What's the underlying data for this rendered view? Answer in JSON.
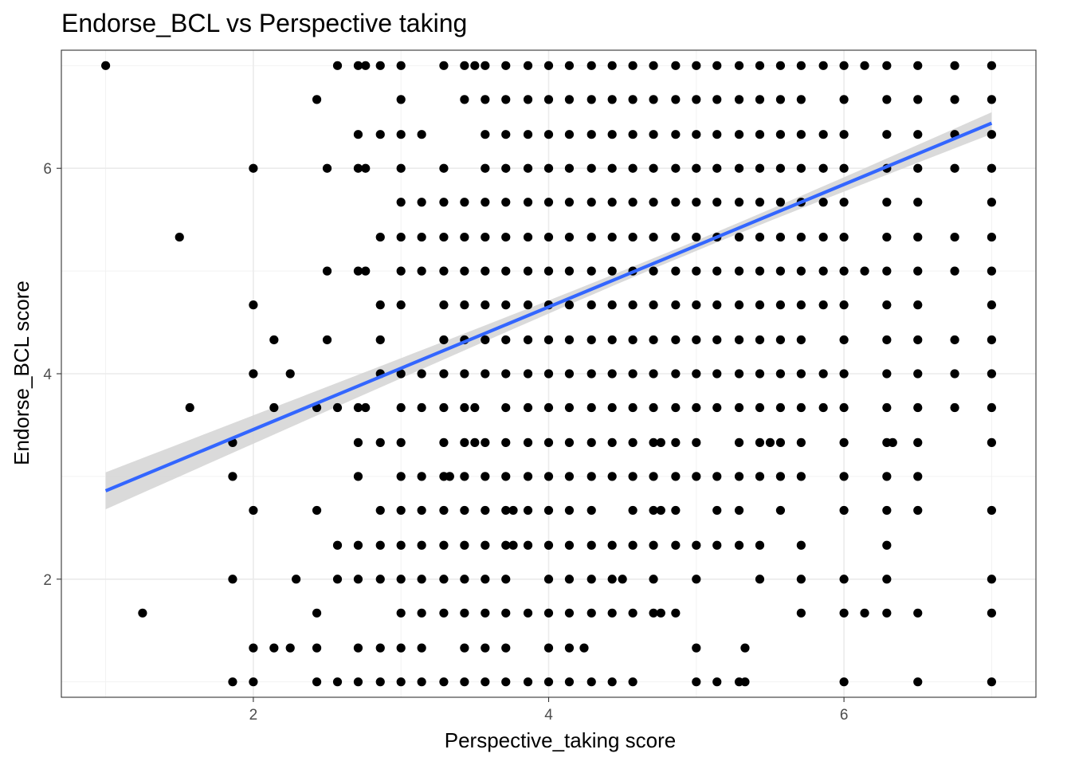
{
  "chart_data": {
    "type": "scatter",
    "title": "Endorse_BCL vs Perspective taking",
    "xlabel": "Perspective_taking score",
    "ylabel": "Endorse_BCL score",
    "xlim": [
      0.7,
      7.3
    ],
    "ylim": [
      0.85,
      7.15
    ],
    "x_ticks": [
      2,
      4,
      6
    ],
    "y_ticks": [
      2,
      4,
      6
    ],
    "x_tick_labels": [
      "2",
      "4",
      "6"
    ],
    "y_tick_labels": [
      "2",
      "4",
      "6"
    ],
    "grid": true,
    "legend": "none",
    "point_color": "#000000",
    "fit_line": {
      "method": "linear regression",
      "x": [
        1.0,
        7.0
      ],
      "y": [
        2.86,
        6.44
      ],
      "ci_lower": [
        2.68,
        6.3
      ],
      "ci_upper": [
        3.04,
        6.58
      ],
      "color": "#3366ff",
      "band_color": "#d3d3d3"
    },
    "points": [
      {
        "y": 7,
        "x": [
          1.0,
          2.57,
          2.71,
          2.76,
          2.86,
          3.0,
          3.29,
          3.43,
          3.5,
          3.57,
          3.71,
          3.86,
          4.0,
          4.14,
          4.29,
          4.43,
          4.57,
          4.71,
          4.86,
          5.0,
          5.14,
          5.29,
          5.43,
          5.57,
          5.71,
          5.86,
          6.0,
          6.14,
          6.29,
          6.5,
          6.75,
          7.0
        ]
      },
      {
        "y": 6.67,
        "x": [
          2.43,
          3.0,
          3.43,
          3.57,
          3.71,
          3.86,
          4.0,
          4.14,
          4.29,
          4.43,
          4.57,
          4.71,
          4.86,
          5.0,
          5.14,
          5.29,
          5.43,
          5.57,
          5.71,
          6.0,
          6.29,
          6.5,
          6.75,
          7.0
        ]
      },
      {
        "y": 6.33,
        "x": [
          2.71,
          2.86,
          3.0,
          3.14,
          3.57,
          3.71,
          3.86,
          4.0,
          4.14,
          4.29,
          4.43,
          4.57,
          4.71,
          4.86,
          5.0,
          5.14,
          5.29,
          5.43,
          5.57,
          5.71,
          5.86,
          6.0,
          6.29,
          6.5,
          6.75,
          7.0
        ]
      },
      {
        "y": 6,
        "x": [
          2.0,
          2.5,
          2.71,
          2.76,
          3.0,
          3.29,
          3.57,
          3.71,
          3.86,
          4.0,
          4.14,
          4.29,
          4.43,
          4.57,
          4.71,
          4.86,
          5.0,
          5.14,
          5.29,
          5.43,
          5.57,
          5.71,
          5.86,
          6.0,
          6.29,
          6.5,
          6.75,
          7.0
        ]
      },
      {
        "y": 5.67,
        "x": [
          3.0,
          3.14,
          3.29,
          3.43,
          3.57,
          3.71,
          3.86,
          4.0,
          4.14,
          4.29,
          4.43,
          4.57,
          4.71,
          4.86,
          5.0,
          5.14,
          5.29,
          5.43,
          5.57,
          5.71,
          5.86,
          6.0,
          6.29,
          6.5,
          7.0
        ]
      },
      {
        "y": 5.33,
        "x": [
          1.5,
          2.86,
          3.0,
          3.14,
          3.29,
          3.43,
          3.57,
          3.71,
          3.86,
          4.0,
          4.14,
          4.29,
          4.43,
          4.57,
          4.71,
          4.86,
          5.0,
          5.14,
          5.29,
          5.43,
          5.57,
          5.71,
          5.86,
          6.0,
          6.29,
          6.5,
          6.75,
          7.0
        ]
      },
      {
        "y": 5,
        "x": [
          2.5,
          2.71,
          2.76,
          3.0,
          3.14,
          3.29,
          3.43,
          3.57,
          3.71,
          3.86,
          4.0,
          4.14,
          4.29,
          4.43,
          4.57,
          4.71,
          4.86,
          5.0,
          5.14,
          5.29,
          5.43,
          5.57,
          5.71,
          5.86,
          6.0,
          6.14,
          6.29,
          6.5,
          6.75,
          7.0
        ]
      },
      {
        "y": 4.67,
        "x": [
          2.0,
          2.86,
          3.0,
          3.29,
          3.43,
          3.57,
          3.71,
          3.86,
          4.0,
          4.14,
          4.29,
          4.43,
          4.57,
          4.71,
          4.86,
          5.0,
          5.14,
          5.29,
          5.43,
          5.57,
          5.71,
          5.86,
          6.0,
          6.29,
          6.5,
          7.0
        ]
      },
      {
        "y": 4.33,
        "x": [
          2.14,
          2.5,
          2.86,
          3.29,
          3.43,
          3.57,
          3.71,
          3.86,
          4.0,
          4.14,
          4.29,
          4.43,
          4.57,
          4.71,
          4.86,
          5.0,
          5.14,
          5.29,
          5.43,
          5.57,
          5.71,
          6.0,
          6.29,
          6.5,
          6.75,
          7.0
        ]
      },
      {
        "y": 4,
        "x": [
          2.0,
          2.25,
          2.86,
          3.0,
          3.14,
          3.29,
          3.43,
          3.57,
          3.71,
          3.86,
          4.0,
          4.14,
          4.29,
          4.43,
          4.57,
          4.71,
          4.86,
          5.0,
          5.14,
          5.29,
          5.43,
          5.57,
          5.71,
          5.86,
          6.0,
          6.29,
          6.5,
          6.75,
          7.0
        ]
      },
      {
        "y": 3.67,
        "x": [
          1.57,
          2.14,
          2.43,
          2.57,
          2.71,
          2.76,
          3.0,
          3.14,
          3.29,
          3.43,
          3.5,
          3.71,
          3.86,
          4.0,
          4.14,
          4.29,
          4.43,
          4.57,
          4.71,
          4.86,
          5.0,
          5.14,
          5.29,
          5.43,
          5.57,
          5.71,
          5.86,
          6.0,
          6.29,
          6.5,
          6.75,
          7.0
        ]
      },
      {
        "y": 3.33,
        "x": [
          1.86,
          2.71,
          2.86,
          3.0,
          3.29,
          3.43,
          3.5,
          3.57,
          3.71,
          3.86,
          4.0,
          4.14,
          4.29,
          4.43,
          4.57,
          4.71,
          4.76,
          4.86,
          5.0,
          5.29,
          5.43,
          5.5,
          5.57,
          5.71,
          6.0,
          6.29,
          6.33,
          6.5,
          7.0
        ]
      },
      {
        "y": 3,
        "x": [
          1.86,
          2.71,
          3.0,
          3.14,
          3.29,
          3.33,
          3.43,
          3.57,
          3.71,
          3.86,
          4.0,
          4.14,
          4.29,
          4.43,
          4.57,
          4.71,
          4.86,
          5.0,
          5.14,
          5.29,
          5.43,
          5.57,
          5.71,
          6.0,
          6.29,
          6.5
        ]
      },
      {
        "y": 2.67,
        "x": [
          2.0,
          2.43,
          2.86,
          3.0,
          3.14,
          3.29,
          3.43,
          3.57,
          3.71,
          3.76,
          3.86,
          4.0,
          4.14,
          4.29,
          4.57,
          4.71,
          4.76,
          4.86,
          5.14,
          5.29,
          5.57,
          6.0,
          6.29,
          6.5,
          7.0
        ]
      },
      {
        "y": 2.33,
        "x": [
          2.57,
          2.71,
          2.86,
          3.0,
          3.14,
          3.29,
          3.43,
          3.57,
          3.71,
          3.76,
          3.86,
          4.0,
          4.14,
          4.29,
          4.43,
          4.57,
          4.71,
          4.86,
          5.0,
          5.14,
          5.29,
          5.43,
          5.71,
          6.29
        ]
      },
      {
        "y": 2,
        "x": [
          1.86,
          2.29,
          2.57,
          2.71,
          2.86,
          3.0,
          3.14,
          3.29,
          3.43,
          3.57,
          3.71,
          4.0,
          4.14,
          4.29,
          4.43,
          4.5,
          4.71,
          5.0,
          5.43,
          5.71,
          6.0,
          6.29,
          7.0
        ]
      },
      {
        "y": 1.67,
        "x": [
          1.25,
          2.43,
          3.0,
          3.14,
          3.29,
          3.43,
          3.57,
          3.71,
          3.86,
          4.0,
          4.14,
          4.29,
          4.43,
          4.57,
          4.71,
          4.76,
          4.86,
          5.71,
          6.0,
          6.14,
          6.29,
          6.5,
          7.0
        ]
      },
      {
        "y": 1.33,
        "x": [
          2.0,
          2.14,
          2.25,
          2.43,
          2.71,
          2.86,
          3.0,
          3.14,
          3.43,
          3.57,
          3.71,
          4.0,
          4.14,
          4.24,
          5.0,
          5.33
        ]
      },
      {
        "y": 1,
        "x": [
          1.86,
          2.0,
          2.43,
          2.57,
          2.71,
          2.86,
          3.0,
          3.14,
          3.29,
          3.43,
          3.57,
          3.71,
          3.86,
          4.0,
          4.14,
          4.29,
          4.43,
          4.57,
          5.0,
          5.14,
          5.29,
          5.33,
          6.0,
          6.5,
          7.0
        ]
      }
    ]
  }
}
